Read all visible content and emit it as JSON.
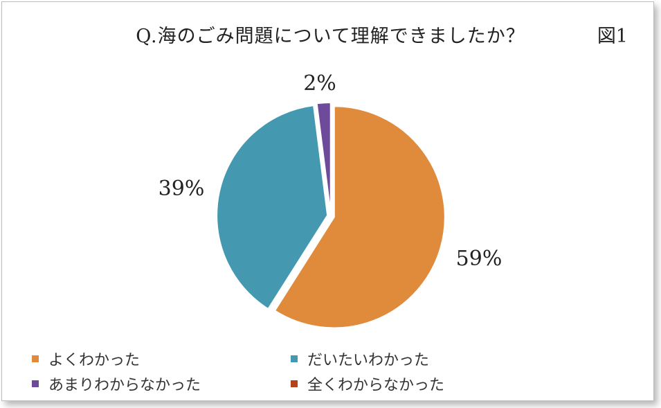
{
  "chart_data": {
    "type": "pie",
    "title": "Q.海のごみ問題について理解できましたか？",
    "figure_label": "図1",
    "slices": [
      {
        "label": "よくわかった",
        "value": 59,
        "display": "59%",
        "color": "#E08A3C"
      },
      {
        "label": "だいたいわかった",
        "value": 39,
        "display": "39%",
        "color": "#4499B0"
      },
      {
        "label": "あまりわからなかった",
        "value": 2,
        "display": "2%",
        "color": "#6E4A9A"
      },
      {
        "label": "全くわからなかった",
        "value": 0,
        "display": "",
        "color": "#B5421C"
      }
    ],
    "legend_position": "bottom"
  }
}
